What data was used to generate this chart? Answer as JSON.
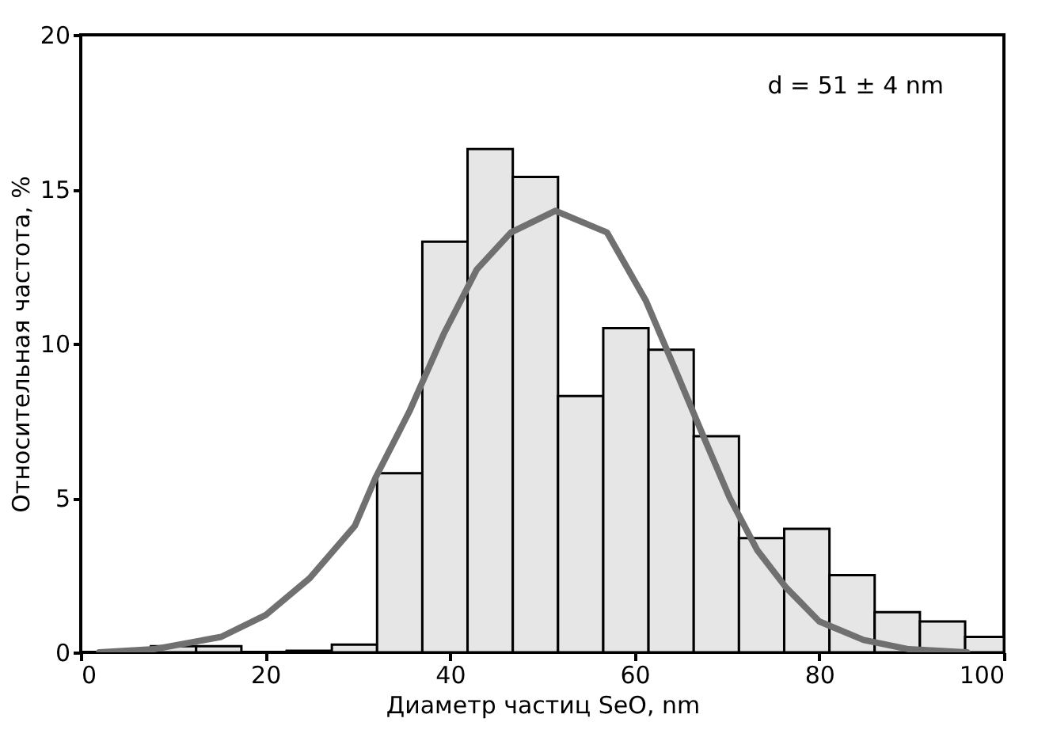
{
  "chart_data": {
    "type": "histogram",
    "xlabel": "Диаметр частиц SeO, nm",
    "ylabel": "Относительная частота, %",
    "bins": [
      2.7,
      7.6,
      12.5,
      17.4,
      22.3,
      27.2,
      32.1,
      37.0,
      41.9,
      46.8,
      51.7,
      56.6,
      61.5,
      66.4,
      71.3,
      76.2,
      81.1,
      86.0,
      90.9,
      95.8,
      100.0
    ],
    "series": [
      {
        "color": "#e6e6e6",
        "values": [
          0.05,
          0.2,
          0.2,
          0,
          0.05,
          0.25,
          5.8,
          13.3,
          16.3,
          15.4,
          8.3,
          10.5,
          9.8,
          7.0,
          3.7,
          4.0,
          2.5,
          1.3,
          1.0,
          0.5
        ]
      },
      {
        "type": "line",
        "color": "#707070",
        "x": [
          2,
          7.9,
          15.2,
          20,
          24.8,
          29.7,
          32,
          35.6,
          39.3,
          42.9,
          46.6,
          51.4,
          57,
          61.2,
          64.2,
          67.3,
          70.3,
          73.3,
          76.4,
          80,
          84.8,
          89.7,
          96
        ],
        "values": [
          0,
          0.1,
          0.5,
          1.2,
          2.4,
          4.1,
          5.7,
          7.8,
          10.3,
          12.4,
          13.6,
          14.3,
          13.6,
          11.4,
          9.3,
          7.1,
          5.0,
          3.3,
          2.1,
          1.0,
          0.4,
          0.1,
          0
        ]
      }
    ],
    "xlim": [
      0,
      100
    ],
    "xticks": [
      0,
      20,
      40,
      60,
      80,
      100
    ],
    "ylim": [
      0,
      20
    ],
    "yticks": [
      0,
      5,
      10,
      15,
      20
    ],
    "annotations": [
      "d = 51 ± 4 nm"
    ]
  }
}
